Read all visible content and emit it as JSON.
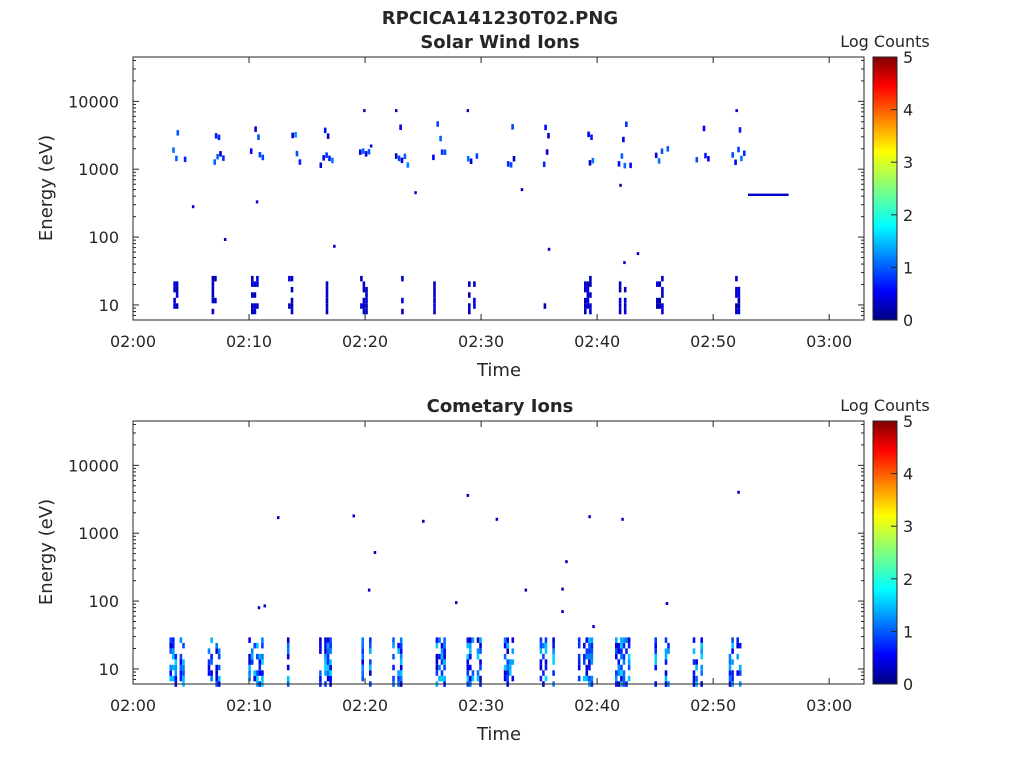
{
  "figure_title": "RPCICA141230T02.PNG",
  "chart_data": [
    {
      "type": "heatmap",
      "title": "Solar Wind Ions",
      "xlabel": "Time",
      "ylabel": "Energy (eV)",
      "xlim": [
        "02:00",
        "03:03"
      ],
      "ylim": [
        6,
        45000
      ],
      "yscale": "log",
      "x_ticks": [
        "02:00",
        "02:10",
        "02:20",
        "02:30",
        "02:40",
        "02:50",
        "03:00"
      ],
      "y_ticks": [
        "10",
        "100",
        "1000",
        "10000"
      ],
      "colorbar": {
        "label": "Log Counts",
        "range": [
          0,
          5
        ],
        "ticks": [
          "0",
          "1",
          "2",
          "3",
          "4",
          "5"
        ]
      },
      "grid": false,
      "bursts_minutes": [
        3.8,
        7.1,
        10.5,
        13.7,
        16.5,
        19.9,
        23.0,
        26.2,
        29.2,
        32.4,
        35.5,
        39.2,
        42.2,
        45.4,
        48.9,
        52.0
      ],
      "high_energy_bands_ev": [
        1500,
        3500
      ],
      "low_energy_band_ev": [
        8,
        25
      ],
      "features": [
        {
          "time": "02:53:00",
          "time_end": "02:56:30",
          "energy_ev": 420,
          "log_counts": 0.4
        }
      ],
      "sparse_points": [
        {
          "time": "02:05:10",
          "energy_ev": 280
        },
        {
          "time": "02:07:55",
          "energy_ev": 92
        },
        {
          "time": "02:10:40",
          "energy_ev": 330
        },
        {
          "time": "02:17:20",
          "energy_ev": 73
        },
        {
          "time": "02:19:55",
          "energy_ev": 7300
        },
        {
          "time": "02:20:30",
          "energy_ev": 2200
        },
        {
          "time": "02:22:40",
          "energy_ev": 7300
        },
        {
          "time": "02:24:20",
          "energy_ev": 450
        },
        {
          "time": "02:28:50",
          "energy_ev": 7300
        },
        {
          "time": "02:33:30",
          "energy_ev": 500
        },
        {
          "time": "02:35:50",
          "energy_ev": 66
        },
        {
          "time": "02:42:00",
          "energy_ev": 580
        },
        {
          "time": "02:42:20",
          "energy_ev": 42
        },
        {
          "time": "02:43:30",
          "energy_ev": 57
        },
        {
          "time": "02:52:00",
          "energy_ev": 7300
        }
      ]
    },
    {
      "type": "heatmap",
      "title": "Cometary Ions",
      "xlabel": "Time",
      "ylabel": "Energy (eV)",
      "xlim": [
        "02:00",
        "03:03"
      ],
      "ylim": [
        6,
        45000
      ],
      "yscale": "log",
      "x_ticks": [
        "02:00",
        "02:10",
        "02:20",
        "02:30",
        "02:40",
        "02:50",
        "03:00"
      ],
      "y_ticks": [
        "10",
        "100",
        "1000",
        "10000"
      ],
      "colorbar": {
        "label": "Log Counts",
        "range": [
          0,
          5
        ],
        "ticks": [
          "0",
          "1",
          "2",
          "3",
          "4",
          "5"
        ]
      },
      "grid": false,
      "bursts_minutes": [
        3.8,
        7.1,
        10.6,
        13.7,
        16.7,
        19.9,
        23.0,
        26.3,
        29.4,
        32.4,
        35.7,
        39.0,
        42.2,
        45.6,
        48.9,
        52.0
      ],
      "low_energy_band_ev": [
        6,
        30
      ],
      "sparse_points": [
        {
          "time": "02:10:50",
          "energy_ev": 80
        },
        {
          "time": "02:11:20",
          "energy_ev": 85
        },
        {
          "time": "02:12:30",
          "energy_ev": 1700
        },
        {
          "time": "02:19:00",
          "energy_ev": 1800
        },
        {
          "time": "02:20:20",
          "energy_ev": 145
        },
        {
          "time": "02:20:50",
          "energy_ev": 520
        },
        {
          "time": "02:25:00",
          "energy_ev": 1500
        },
        {
          "time": "02:27:50",
          "energy_ev": 95
        },
        {
          "time": "02:28:50",
          "energy_ev": 3600
        },
        {
          "time": "02:31:20",
          "energy_ev": 1600
        },
        {
          "time": "02:33:50",
          "energy_ev": 145
        },
        {
          "time": "02:37:00",
          "energy_ev": 150
        },
        {
          "time": "02:37:20",
          "energy_ev": 380
        },
        {
          "time": "02:37:00",
          "energy_ev": 70
        },
        {
          "time": "02:39:20",
          "energy_ev": 1750
        },
        {
          "time": "02:39:40",
          "energy_ev": 42
        },
        {
          "time": "02:42:10",
          "energy_ev": 1600
        },
        {
          "time": "02:46:00",
          "energy_ev": 92
        },
        {
          "time": "02:52:10",
          "energy_ev": 4000
        }
      ]
    }
  ]
}
